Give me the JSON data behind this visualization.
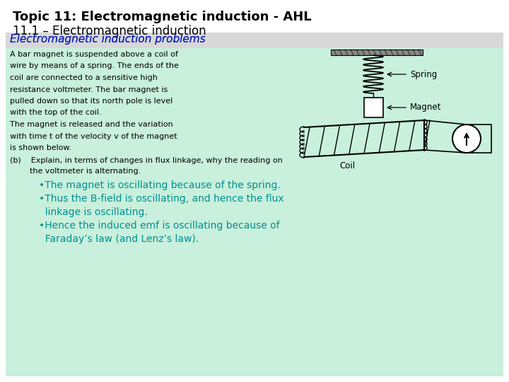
{
  "title_line1": "Topic 11: Electromagnetic induction - AHL",
  "title_line2": "11.1 – Electromagnetic induction",
  "subtitle": "Electromagnetic induction problems",
  "body_text_lines": [
    "A bar magnet is suspended above a coil of",
    "wire by means of a spring. The ends of the",
    "coil are connected to a sensitive high",
    "resistance voltmeter. The bar magnet is",
    "pulled down so that its north pole is level",
    "with the top of the coil.",
    "The magnet is released and the variation",
    "with time t of the velocity v of the magnet",
    "is shown below."
  ],
  "part_b_line1": "(b)    Explain, in terms of changes in flux linkage, why the reading on",
  "part_b_line2": "        the voltmeter is alternating.",
  "answer_lines": [
    "•The magnet is oscillating because of the spring.",
    "•Thus the B-field is oscillating, and hence the flux",
    "  linkage is oscillating.",
    "•Hence the induced emf is oscillating because of",
    "  Faraday’s law (and Lenz’s law)."
  ],
  "bg_color": "#ffffff",
  "header_bg": "#d8d8d8",
  "green_bg": "#c8f0dc",
  "title_color": "#000000",
  "subtitle_color": "#1122bb",
  "body_color": "#000000",
  "answer_color": "#009090",
  "part_b_color": "#000000",
  "diagram_colors": {
    "ceiling": "#888888",
    "spring": "#000000",
    "magnet": "#ffffff",
    "coil_lines": "#000000",
    "voltmeter": "#ffffff",
    "wire": "#000000"
  }
}
